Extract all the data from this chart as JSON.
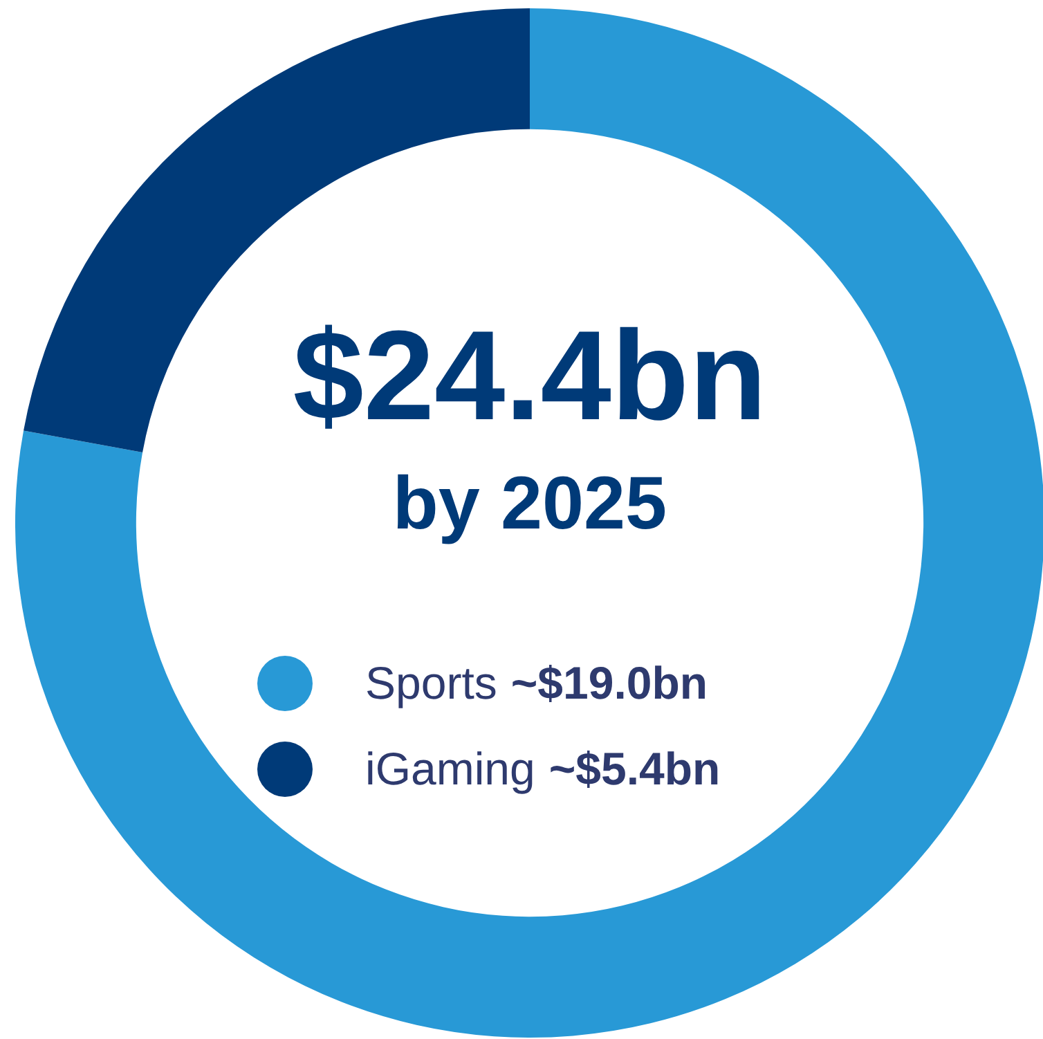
{
  "chart_data": {
    "type": "donut",
    "title": "$24.4bn",
    "subtitle": "by 2025",
    "categories": [
      "Sports",
      "iGaming"
    ],
    "values": [
      19.0,
      5.4
    ],
    "colors": [
      "#2899d6",
      "#003a78"
    ],
    "value_labels": [
      "~$19.0bn",
      "~$5.4bn"
    ],
    "legend": "center"
  }
}
